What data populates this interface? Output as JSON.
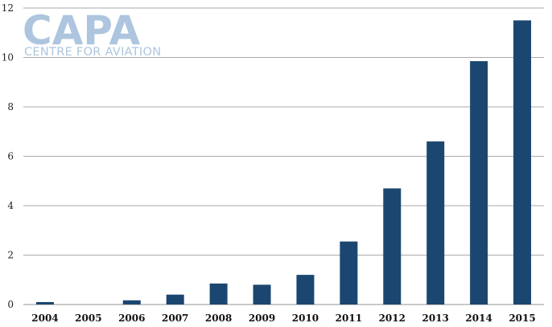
{
  "logo": {
    "main": "CAPA",
    "sub": "CENTRE FOR AVIATION",
    "color": "#a9c2dd"
  },
  "chart_data": {
    "type": "bar",
    "categories": [
      "2004",
      "2005",
      "2006",
      "2007",
      "2008",
      "2009",
      "2010",
      "2011",
      "2012",
      "2013",
      "2014",
      "2015"
    ],
    "values": [
      0.1,
      0,
      0.17,
      0.4,
      0.85,
      0.8,
      1.2,
      2.55,
      4.7,
      6.6,
      9.85,
      11.5
    ],
    "ylim": [
      0,
      12
    ],
    "yticks": [
      0,
      2,
      4,
      6,
      8,
      10,
      12
    ],
    "title": "",
    "xlabel": "",
    "ylabel": "",
    "grid": true,
    "bar_color": "#1b4670",
    "grid_color": "#a9a9a9"
  }
}
